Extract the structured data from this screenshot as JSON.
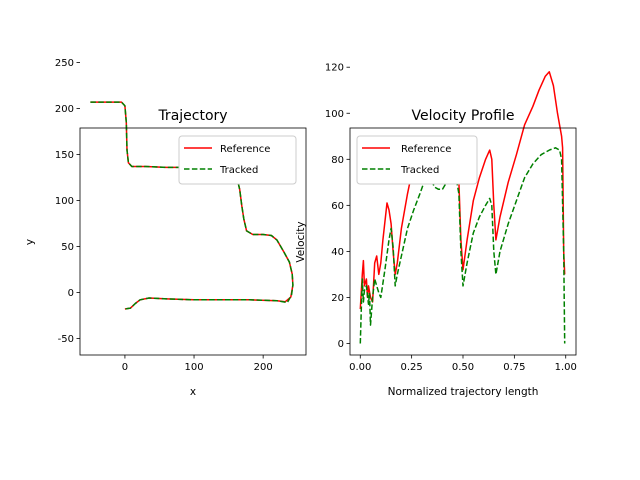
{
  "colors": {
    "reference": "#ff0000",
    "tracked": "#008000"
  },
  "chart_data": [
    {
      "type": "line",
      "title": "Trajectory",
      "xlabel": "x",
      "ylabel": "y",
      "xlim": [
        -65,
        262
      ],
      "ylim": [
        -68,
        255
      ],
      "xticks": [
        0,
        100,
        200
      ],
      "yticks": [
        -50,
        0,
        50,
        100,
        150,
        200,
        250
      ],
      "grid": false,
      "legend_position": "top-right",
      "series": [
        {
          "name": "Reference",
          "style": "solid",
          "color": "#ff0000",
          "points": [
            [
              -50,
              207
            ],
            [
              -5,
              207
            ],
            [
              0,
              203
            ],
            [
              2,
              185
            ],
            [
              3,
              155
            ],
            [
              5,
              141
            ],
            [
              10,
              137
            ],
            [
              30,
              137
            ],
            [
              60,
              136
            ],
            [
              100,
              136
            ],
            [
              140,
              135
            ],
            [
              155,
              132
            ],
            [
              162,
              125
            ],
            [
              166,
              112
            ],
            [
              169,
              95
            ],
            [
              172,
              80
            ],
            [
              176,
              67
            ],
            [
              185,
              63
            ],
            [
              200,
              63
            ],
            [
              212,
              62
            ],
            [
              220,
              57
            ],
            [
              230,
              44
            ],
            [
              238,
              33
            ],
            [
              242,
              20
            ],
            [
              243,
              8
            ],
            [
              240,
              -5
            ],
            [
              232,
              -10
            ],
            [
              220,
              -9
            ],
            [
              180,
              -8
            ],
            [
              100,
              -8
            ],
            [
              60,
              -7
            ],
            [
              35,
              -6
            ],
            [
              22,
              -8
            ],
            [
              15,
              -12
            ],
            [
              8,
              -17
            ],
            [
              0,
              -18
            ]
          ]
        },
        {
          "name": "Tracked",
          "style": "dashed",
          "color": "#008000",
          "points": [
            [
              -50,
              207
            ],
            [
              -5,
              207
            ],
            [
              0,
              203
            ],
            [
              2,
              185
            ],
            [
              3,
              155
            ],
            [
              5,
              141
            ],
            [
              10,
              137
            ],
            [
              30,
              137
            ],
            [
              60,
              136
            ],
            [
              100,
              136
            ],
            [
              140,
              135
            ],
            [
              155,
              132
            ],
            [
              162,
              125
            ],
            [
              166,
              112
            ],
            [
              169,
              95
            ],
            [
              172,
              80
            ],
            [
              176,
              67
            ],
            [
              185,
              63
            ],
            [
              200,
              63
            ],
            [
              212,
              62
            ],
            [
              220,
              57
            ],
            [
              230,
              44
            ],
            [
              238,
              33
            ],
            [
              242,
              20
            ],
            [
              243,
              8
            ],
            [
              241,
              -3
            ],
            [
              235,
              -11
            ],
            [
              220,
              -9
            ],
            [
              180,
              -8
            ],
            [
              100,
              -8
            ],
            [
              60,
              -7
            ],
            [
              35,
              -6
            ],
            [
              22,
              -8
            ],
            [
              15,
              -12
            ],
            [
              8,
              -17
            ],
            [
              0,
              -18
            ]
          ]
        }
      ]
    },
    {
      "type": "line",
      "title": "Velocity Profile",
      "xlabel": "Normalized trajectory length",
      "ylabel": "Velocity",
      "xlim": [
        -0.05,
        1.05
      ],
      "ylim": [
        -5,
        124
      ],
      "xticks": [
        0.0,
        0.25,
        0.5,
        0.75,
        1.0
      ],
      "xticklabels": [
        "0.00",
        "0.25",
        "0.50",
        "0.75",
        "1.00"
      ],
      "yticks": [
        0,
        20,
        40,
        60,
        80,
        100,
        120
      ],
      "grid": false,
      "legend_position": "top-left",
      "series": [
        {
          "name": "Reference",
          "style": "solid",
          "color": "#ff0000",
          "points": [
            [
              0.0,
              15
            ],
            [
              0.01,
              30
            ],
            [
              0.015,
              36
            ],
            [
              0.02,
              25
            ],
            [
              0.03,
              28
            ],
            [
              0.035,
              20
            ],
            [
              0.04,
              25
            ],
            [
              0.05,
              20
            ],
            [
              0.06,
              18
            ],
            [
              0.07,
              35
            ],
            [
              0.08,
              38
            ],
            [
              0.09,
              30
            ],
            [
              0.1,
              35
            ],
            [
              0.11,
              45
            ],
            [
              0.13,
              61
            ],
            [
              0.14,
              58
            ],
            [
              0.15,
              52
            ],
            [
              0.16,
              40
            ],
            [
              0.17,
              30
            ],
            [
              0.18,
              35
            ],
            [
              0.2,
              50
            ],
            [
              0.23,
              65
            ],
            [
              0.26,
              78
            ],
            [
              0.29,
              88
            ],
            [
              0.31,
              85
            ],
            [
              0.33,
              79
            ],
            [
              0.35,
              82
            ],
            [
              0.37,
              74
            ],
            [
              0.39,
              70
            ],
            [
              0.41,
              80
            ],
            [
              0.43,
              88
            ],
            [
              0.45,
              84
            ],
            [
              0.47,
              82
            ],
            [
              0.48,
              70
            ],
            [
              0.49,
              45
            ],
            [
              0.5,
              32
            ],
            [
              0.52,
              45
            ],
            [
              0.55,
              62
            ],
            [
              0.58,
              72
            ],
            [
              0.61,
              80
            ],
            [
              0.63,
              84
            ],
            [
              0.64,
              80
            ],
            [
              0.65,
              60
            ],
            [
              0.66,
              45
            ],
            [
              0.68,
              55
            ],
            [
              0.72,
              70
            ],
            [
              0.76,
              82
            ],
            [
              0.8,
              95
            ],
            [
              0.84,
              103
            ],
            [
              0.87,
              110
            ],
            [
              0.9,
              116
            ],
            [
              0.92,
              118
            ],
            [
              0.94,
              112
            ],
            [
              0.96,
              100
            ],
            [
              0.98,
              90
            ],
            [
              0.985,
              85
            ],
            [
              0.99,
              40
            ],
            [
              0.995,
              30
            ]
          ]
        },
        {
          "name": "Tracked",
          "style": "dashed",
          "color": "#008000",
          "points": [
            [
              0.0,
              0
            ],
            [
              0.005,
              15
            ],
            [
              0.01,
              28
            ],
            [
              0.015,
              18
            ],
            [
              0.02,
              23
            ],
            [
              0.03,
              25
            ],
            [
              0.04,
              17
            ],
            [
              0.045,
              22
            ],
            [
              0.05,
              8
            ],
            [
              0.06,
              20
            ],
            [
              0.07,
              28
            ],
            [
              0.08,
              25
            ],
            [
              0.09,
              22
            ],
            [
              0.1,
              20
            ],
            [
              0.12,
              32
            ],
            [
              0.14,
              45
            ],
            [
              0.15,
              50
            ],
            [
              0.16,
              42
            ],
            [
              0.17,
              25
            ],
            [
              0.18,
              30
            ],
            [
              0.2,
              38
            ],
            [
              0.23,
              50
            ],
            [
              0.26,
              58
            ],
            [
              0.29,
              65
            ],
            [
              0.31,
              70
            ],
            [
              0.34,
              73
            ],
            [
              0.36,
              68
            ],
            [
              0.38,
              67
            ],
            [
              0.4,
              67
            ],
            [
              0.42,
              70
            ],
            [
              0.44,
              72
            ],
            [
              0.46,
              75
            ],
            [
              0.48,
              65
            ],
            [
              0.49,
              40
            ],
            [
              0.5,
              25
            ],
            [
              0.52,
              35
            ],
            [
              0.55,
              48
            ],
            [
              0.58,
              55
            ],
            [
              0.61,
              60
            ],
            [
              0.63,
              63
            ],
            [
              0.64,
              60
            ],
            [
              0.65,
              40
            ],
            [
              0.66,
              30
            ],
            [
              0.68,
              40
            ],
            [
              0.72,
              52
            ],
            [
              0.76,
              62
            ],
            [
              0.8,
              72
            ],
            [
              0.84,
              78
            ],
            [
              0.88,
              82
            ],
            [
              0.92,
              84
            ],
            [
              0.95,
              85
            ],
            [
              0.97,
              84
            ],
            [
              0.98,
              80
            ],
            [
              0.99,
              40
            ],
            [
              0.995,
              0
            ]
          ]
        }
      ]
    }
  ]
}
